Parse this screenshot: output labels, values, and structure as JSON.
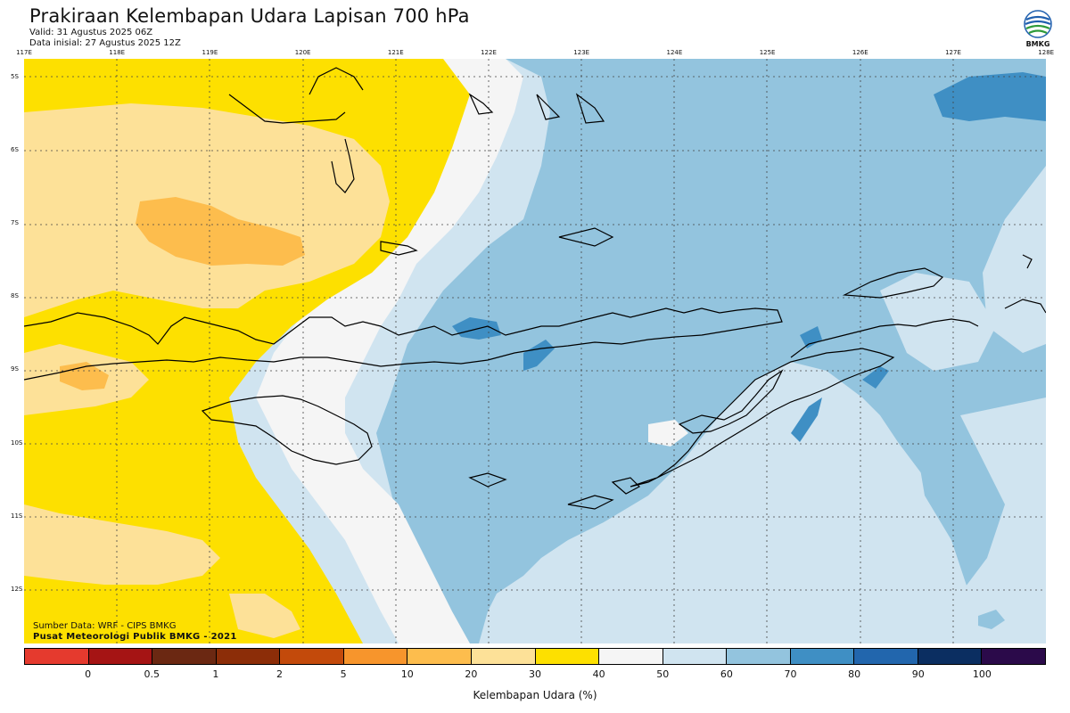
{
  "header": {
    "title": "Prakiraan Kelembapan Udara Lapisan 700 hPa",
    "valid": "Valid: 31 Agustus 2025 06Z",
    "initial": "Data inisial: 27 Agustus 2025 12Z"
  },
  "logo": {
    "text": "BMKG",
    "icon": "bmkg-logo-icon"
  },
  "axes": {
    "lon": [
      "117E",
      "118E",
      "119E",
      "120E",
      "121E",
      "122E",
      "123E",
      "124E",
      "125E",
      "126E",
      "127E",
      "128E"
    ],
    "lat": [
      "5S",
      "6S",
      "7S",
      "8S",
      "9S",
      "10S",
      "11S",
      "12S"
    ]
  },
  "footer": {
    "source": "Sumber Data: WRF - CIPS BMKG",
    "publisher": "Pusat Meteorologi Publik BMKG - 2021"
  },
  "colorbar": {
    "label": "Kelembapan Udara (%)",
    "ticks": [
      "0",
      "0.5",
      "1",
      "2",
      "5",
      "10",
      "20",
      "30",
      "40",
      "50",
      "60",
      "70",
      "80",
      "90",
      "100"
    ],
    "colors": [
      "#e53a2e",
      "#a51414",
      "#6b2812",
      "#8c2d08",
      "#c34a0b",
      "#f7952c",
      "#fdbd4d",
      "#fde198",
      "#fde000",
      "#f5f5f5",
      "#d0e4f0",
      "#93c4de",
      "#3f8fc4",
      "#2266ad",
      "#0b2e61",
      "#2b0a4a"
    ]
  },
  "map": {
    "colors": {
      "orange": "#fdbd4d",
      "light_orange": "#fde198",
      "yellow": "#fde000",
      "white": "#f5f5f5",
      "pale_blue": "#d0e4f0",
      "light_blue": "#93c4de",
      "mid_blue": "#3f8fc4"
    }
  }
}
